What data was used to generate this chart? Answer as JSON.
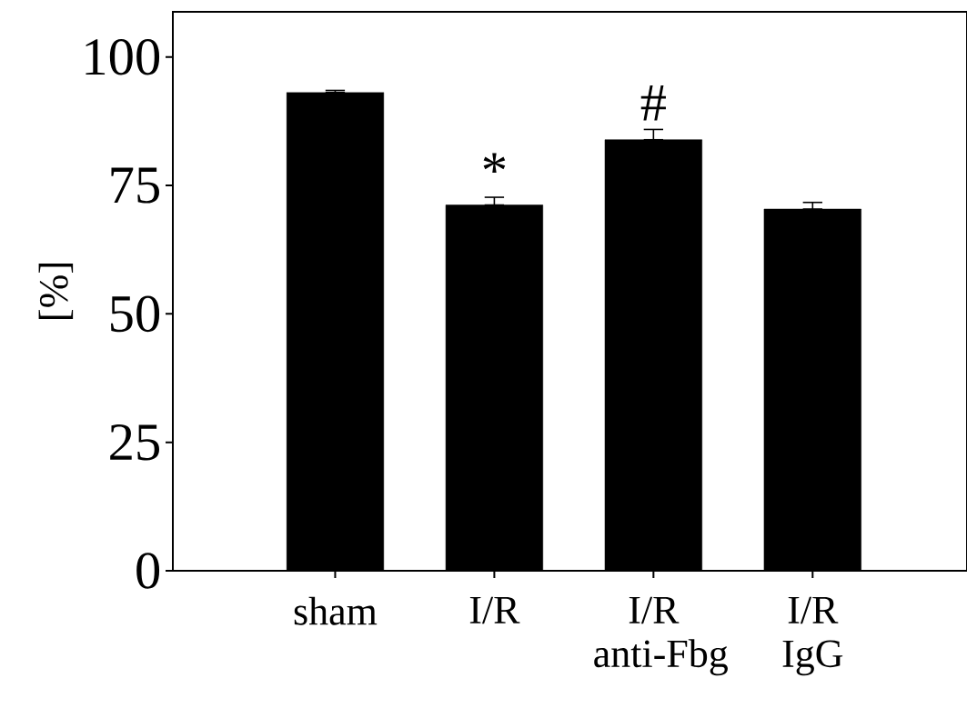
{
  "chart_data": {
    "type": "bar",
    "ylabel": "[%]",
    "categories": [
      "sham",
      "I/R",
      "I/R anti-Fbg",
      "I/R IgG"
    ],
    "values": [
      93.1,
      71.2,
      83.9,
      70.4
    ],
    "errors": [
      [
        93.1,
        93.5
      ],
      [
        71.2,
        72.7
      ],
      [
        83.9,
        85.9
      ],
      [
        70.4,
        71.7
      ]
    ],
    "color": "#000000",
    "ylim": [
      0,
      108.8
    ],
    "yticks": [
      0,
      25,
      50,
      75,
      100
    ],
    "annotations": [
      "*",
      "#"
    ]
  }
}
